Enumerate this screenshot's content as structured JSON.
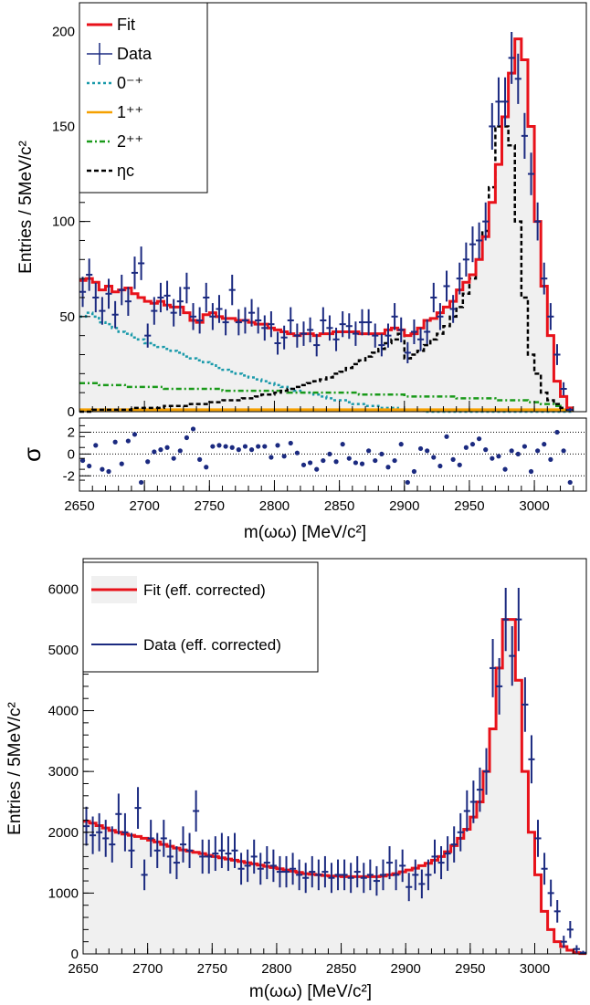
{
  "colors": {
    "fit": "#e8121a",
    "data": "#1b2a80",
    "fill": "#f0f0f0",
    "c0mp": "#1a9aaa",
    "c1pp": "#f5a000",
    "c2pp": "#1a9a1a",
    "etac": "#000000"
  },
  "chart_data": [
    {
      "type": "line",
      "panel": "top",
      "xlabel": "m(ωω) [MeV/c²]",
      "ylabel": "Entries / 5MeV/c²",
      "xlim": [
        2650,
        3040
      ],
      "ylim": [
        0,
        215
      ],
      "x_ticks": [
        2650,
        2700,
        2750,
        2800,
        2850,
        2900,
        2950,
        3000
      ],
      "y_ticks": [
        0,
        50,
        100,
        150,
        200
      ],
      "legend_position": "top-left",
      "legend": [
        "Fit",
        "Data",
        "0⁻⁺",
        "1⁺⁺",
        "2⁺⁺",
        "ηc"
      ],
      "x": [
        2652.5,
        2657.5,
        2662.5,
        2667.5,
        2672.5,
        2677.5,
        2682.5,
        2687.5,
        2692.5,
        2697.5,
        2702.5,
        2707.5,
        2712.5,
        2717.5,
        2722.5,
        2727.5,
        2732.5,
        2737.5,
        2742.5,
        2747.5,
        2752.5,
        2757.5,
        2762.5,
        2767.5,
        2772.5,
        2777.5,
        2782.5,
        2787.5,
        2792.5,
        2797.5,
        2802.5,
        2807.5,
        2812.5,
        2817.5,
        2822.5,
        2827.5,
        2832.5,
        2837.5,
        2842.5,
        2847.5,
        2852.5,
        2857.5,
        2862.5,
        2867.5,
        2872.5,
        2877.5,
        2882.5,
        2887.5,
        2892.5,
        2897.5,
        2902.5,
        2907.5,
        2912.5,
        2917.5,
        2922.5,
        2927.5,
        2932.5,
        2937.5,
        2942.5,
        2947.5,
        2952.5,
        2957.5,
        2962.5,
        2967.5,
        2972.5,
        2977.5,
        2982.5,
        2987.5,
        2992.5,
        2997.5,
        3002.5,
        3007.5,
        3012.5,
        3017.5,
        3022.5,
        3027.5
      ],
      "series": [
        {
          "name": "Fit",
          "values": [
            69,
            70,
            68,
            64,
            66,
            63,
            64,
            65,
            62,
            60,
            58,
            57,
            58,
            56,
            55,
            55,
            52,
            48,
            47,
            51,
            52,
            50,
            49,
            49,
            48,
            48,
            47,
            46,
            46,
            44,
            43,
            42,
            41,
            40,
            41,
            41,
            40,
            41,
            41,
            42,
            42,
            42,
            42,
            41,
            41,
            41,
            41,
            43,
            44,
            43,
            40,
            41,
            44,
            48,
            49,
            52,
            55,
            58,
            64,
            68,
            72,
            80,
            92,
            110,
            130,
            155,
            178,
            196,
            185,
            150,
            100,
            66,
            40,
            16,
            8,
            2
          ]
        },
        {
          "name": "Data",
          "values": [
            63,
            72,
            60,
            53,
            62,
            51,
            64,
            58,
            73,
            78,
            40,
            53,
            60,
            61,
            52,
            58,
            65,
            50,
            48,
            60,
            50,
            54,
            47,
            64,
            47,
            48,
            52,
            48,
            44,
            46,
            36,
            39,
            48,
            40,
            41,
            43,
            35,
            48,
            44,
            38,
            46,
            45,
            41,
            47,
            47,
            40,
            35,
            40,
            50,
            43,
            31,
            42,
            38,
            42,
            60,
            50,
            66,
            54,
            70,
            80,
            88,
            90,
            100,
            150,
            163,
            163,
            186,
            175,
            145,
            125,
            100,
            70,
            50,
            30,
            12,
            1
          ]
        },
        {
          "name": "0⁻⁺",
          "values": [
            50,
            52,
            50,
            47,
            46,
            44,
            42,
            41,
            39,
            38,
            36,
            35,
            34,
            33,
            32,
            31,
            29,
            28,
            27,
            26,
            25,
            23,
            22,
            21,
            20,
            19,
            18,
            17,
            16,
            15,
            14,
            13,
            12,
            11,
            10,
            10,
            9,
            8,
            7,
            6,
            6,
            5,
            4,
            4,
            3,
            3,
            2,
            2,
            2,
            1,
            1,
            1,
            1,
            0,
            0,
            0,
            0,
            0,
            0,
            0,
            0,
            0,
            0,
            0,
            0,
            0,
            0,
            0,
            0,
            0,
            0,
            0,
            0,
            0,
            0,
            0
          ]
        },
        {
          "name": "1⁺⁺",
          "values": [
            1,
            1,
            1,
            1,
            1,
            1,
            1,
            1,
            1,
            1,
            1,
            1,
            1,
            1,
            1,
            1,
            1,
            1,
            1,
            1,
            1,
            1,
            1,
            1,
            1,
            1,
            1,
            1,
            1,
            1,
            1,
            1,
            1,
            1,
            1,
            1,
            1,
            1,
            1,
            1,
            1,
            1,
            1,
            1,
            1,
            1,
            1,
            1,
            1,
            1,
            1,
            1,
            1,
            1,
            1,
            1,
            1,
            1,
            1,
            1,
            1,
            1,
            1,
            1,
            1,
            1,
            1,
            1,
            1,
            1,
            1,
            1,
            1,
            1,
            1,
            1
          ]
        },
        {
          "name": "2⁺⁺",
          "values": [
            15,
            15,
            15,
            14,
            14,
            14,
            14,
            13,
            13,
            13,
            13,
            13,
            13,
            12,
            12,
            12,
            12,
            12,
            12,
            12,
            12,
            12,
            11,
            11,
            11,
            11,
            11,
            11,
            11,
            11,
            11,
            11,
            10,
            10,
            10,
            10,
            10,
            10,
            10,
            10,
            10,
            10,
            10,
            9,
            9,
            9,
            9,
            9,
            9,
            9,
            8,
            8,
            8,
            8,
            8,
            8,
            8,
            8,
            7,
            7,
            7,
            7,
            7,
            7,
            6,
            6,
            6,
            6,
            6,
            5,
            5,
            4,
            4,
            3,
            2,
            1
          ]
        },
        {
          "name": "ηc",
          "values": [
            0,
            0,
            1,
            1,
            1,
            1,
            1,
            1,
            2,
            2,
            2,
            2,
            2,
            3,
            3,
            3,
            3,
            4,
            4,
            4,
            5,
            5,
            6,
            6,
            6,
            7,
            7,
            8,
            9,
            9,
            10,
            11,
            12,
            13,
            14,
            15,
            16,
            17,
            18,
            20,
            21,
            23,
            25,
            27,
            29,
            31,
            33,
            36,
            38,
            41,
            28,
            30,
            32,
            35,
            38,
            41,
            45,
            50,
            55,
            62,
            70,
            80,
            95,
            118,
            150,
            150,
            140,
            100,
            60,
            30,
            20,
            10,
            6,
            4,
            2,
            1
          ]
        }
      ]
    },
    {
      "type": "scatter",
      "panel": "pull",
      "ylabel": "σ",
      "xlim": [
        2650,
        3040
      ],
      "ylim": [
        -3.4,
        3.3
      ],
      "y_ticks": [
        -2,
        0,
        2
      ],
      "reference_lines": [
        -2,
        0,
        2
      ],
      "x": [
        2652.5,
        2657.5,
        2662.5,
        2667.5,
        2672.5,
        2677.5,
        2682.5,
        2687.5,
        2692.5,
        2697.5,
        2702.5,
        2707.5,
        2712.5,
        2717.5,
        2722.5,
        2727.5,
        2732.5,
        2737.5,
        2742.5,
        2747.5,
        2752.5,
        2757.5,
        2762.5,
        2767.5,
        2772.5,
        2777.5,
        2782.5,
        2787.5,
        2792.5,
        2797.5,
        2802.5,
        2807.5,
        2812.5,
        2817.5,
        2822.5,
        2827.5,
        2832.5,
        2837.5,
        2842.5,
        2847.5,
        2852.5,
        2857.5,
        2862.5,
        2867.5,
        2872.5,
        2877.5,
        2882.5,
        2887.5,
        2892.5,
        2897.5,
        2902.5,
        2907.5,
        2912.5,
        2917.5,
        2922.5,
        2927.5,
        2932.5,
        2937.5,
        2942.5,
        2947.5,
        2952.5,
        2957.5,
        2962.5,
        2967.5,
        2972.5,
        2977.5,
        2982.5,
        2987.5,
        2992.5,
        2997.5,
        3002.5,
        3007.5,
        3012.5,
        3017.5,
        3022.5,
        3027.5
      ],
      "values": [
        -0.6,
        -1.1,
        0.8,
        -1.4,
        -1.6,
        1.1,
        -0.9,
        1.2,
        1.8,
        -2.6,
        -0.7,
        0.2,
        0.4,
        0.6,
        -0.4,
        0.3,
        1.5,
        2.3,
        -0.5,
        -1.2,
        0.7,
        0.8,
        0.7,
        0.6,
        0.4,
        0.7,
        0.4,
        0.7,
        0.7,
        -0.3,
        0.8,
        -0.2,
        1.0,
        0.1,
        -1.0,
        -0.8,
        -1.4,
        -0.6,
        0.0,
        -0.7,
        0.9,
        -0.4,
        -0.8,
        -0.9,
        0.3,
        -0.6,
        0.0,
        -1.2,
        -0.6,
        0.9,
        -2.6,
        -1.6,
        0.5,
        0.3,
        -0.3,
        -1.1,
        1.6,
        -0.5,
        -1.0,
        0.6,
        0.9,
        1.4,
        0.4,
        -0.4,
        -0.2,
        -1.4,
        0.3,
        0.0,
        0.7,
        -1.6,
        0.3,
        0.9,
        -0.5,
        2.0,
        0.3,
        -2.6
      ]
    },
    {
      "type": "line",
      "panel": "bottom",
      "xlabel": "m(ωω) [MeV/c²]",
      "ylabel": "Entries / 5MeV/c²",
      "xlim": [
        2650,
        3040
      ],
      "ylim": [
        0,
        6500
      ],
      "x_ticks": [
        2650,
        2700,
        2750,
        2800,
        2850,
        2900,
        2950,
        3000
      ],
      "y_ticks": [
        0,
        1000,
        2000,
        3000,
        4000,
        5000,
        6000
      ],
      "legend_position": "top-left",
      "legend": [
        "Fit (eff. corrected)",
        "Data (eff. corrected)"
      ],
      "x": [
        2652.5,
        2657.5,
        2662.5,
        2667.5,
        2672.5,
        2677.5,
        2682.5,
        2687.5,
        2692.5,
        2697.5,
        2702.5,
        2707.5,
        2712.5,
        2717.5,
        2722.5,
        2727.5,
        2732.5,
        2737.5,
        2742.5,
        2747.5,
        2752.5,
        2757.5,
        2762.5,
        2767.5,
        2772.5,
        2777.5,
        2782.5,
        2787.5,
        2792.5,
        2797.5,
        2802.5,
        2807.5,
        2812.5,
        2817.5,
        2822.5,
        2827.5,
        2832.5,
        2837.5,
        2842.5,
        2847.5,
        2852.5,
        2857.5,
        2862.5,
        2867.5,
        2872.5,
        2877.5,
        2882.5,
        2887.5,
        2892.5,
        2897.5,
        2902.5,
        2907.5,
        2912.5,
        2917.5,
        2922.5,
        2927.5,
        2932.5,
        2937.5,
        2942.5,
        2947.5,
        2952.5,
        2957.5,
        2962.5,
        2967.5,
        2972.5,
        2977.5,
        2982.5,
        2987.5,
        2992.5,
        2997.5,
        3002.5,
        3007.5,
        3012.5,
        3017.5,
        3022.5,
        3027.5,
        3032.5,
        3037.5
      ],
      "series": [
        {
          "name": "Fit (eff. corrected)",
          "values": [
            2180,
            2150,
            2110,
            2070,
            2030,
            2000,
            1970,
            1950,
            1930,
            1900,
            1870,
            1840,
            1800,
            1770,
            1740,
            1710,
            1690,
            1670,
            1650,
            1620,
            1600,
            1580,
            1560,
            1540,
            1520,
            1500,
            1480,
            1460,
            1440,
            1420,
            1400,
            1380,
            1360,
            1340,
            1320,
            1310,
            1300,
            1290,
            1280,
            1280,
            1270,
            1270,
            1270,
            1270,
            1270,
            1270,
            1280,
            1300,
            1320,
            1350,
            1380,
            1410,
            1450,
            1490,
            1540,
            1600,
            1680,
            1780,
            1900,
            2050,
            2250,
            2500,
            3000,
            3700,
            4700,
            5500,
            5500,
            4500,
            3000,
            2000,
            1300,
            700,
            400,
            200,
            120,
            60,
            20,
            5
          ]
        },
        {
          "name": "Data (eff. corrected)",
          "values": [
            2100,
            1950,
            2000,
            1900,
            1800,
            2300,
            2000,
            1700,
            2400,
            1300,
            1900,
            1700,
            1900,
            1600,
            1500,
            1800,
            1700,
            2350,
            1600,
            1600,
            1650,
            1700,
            1650,
            1700,
            1400,
            1450,
            1600,
            1400,
            1500,
            1450,
            1350,
            1350,
            1400,
            1300,
            1250,
            1350,
            1300,
            1350,
            1250,
            1300,
            1300,
            1250,
            1350,
            1250,
            1300,
            1200,
            1300,
            1500,
            1300,
            1450,
            1100,
            1300,
            1150,
            1300,
            1600,
            1500,
            1650,
            1800,
            2000,
            2350,
            2500,
            2700,
            3000,
            4700,
            4400,
            5500,
            4900,
            5500,
            4100,
            3200,
            1900,
            1400,
            1000,
            700,
            200,
            400,
            80,
            20
          ]
        }
      ]
    }
  ]
}
